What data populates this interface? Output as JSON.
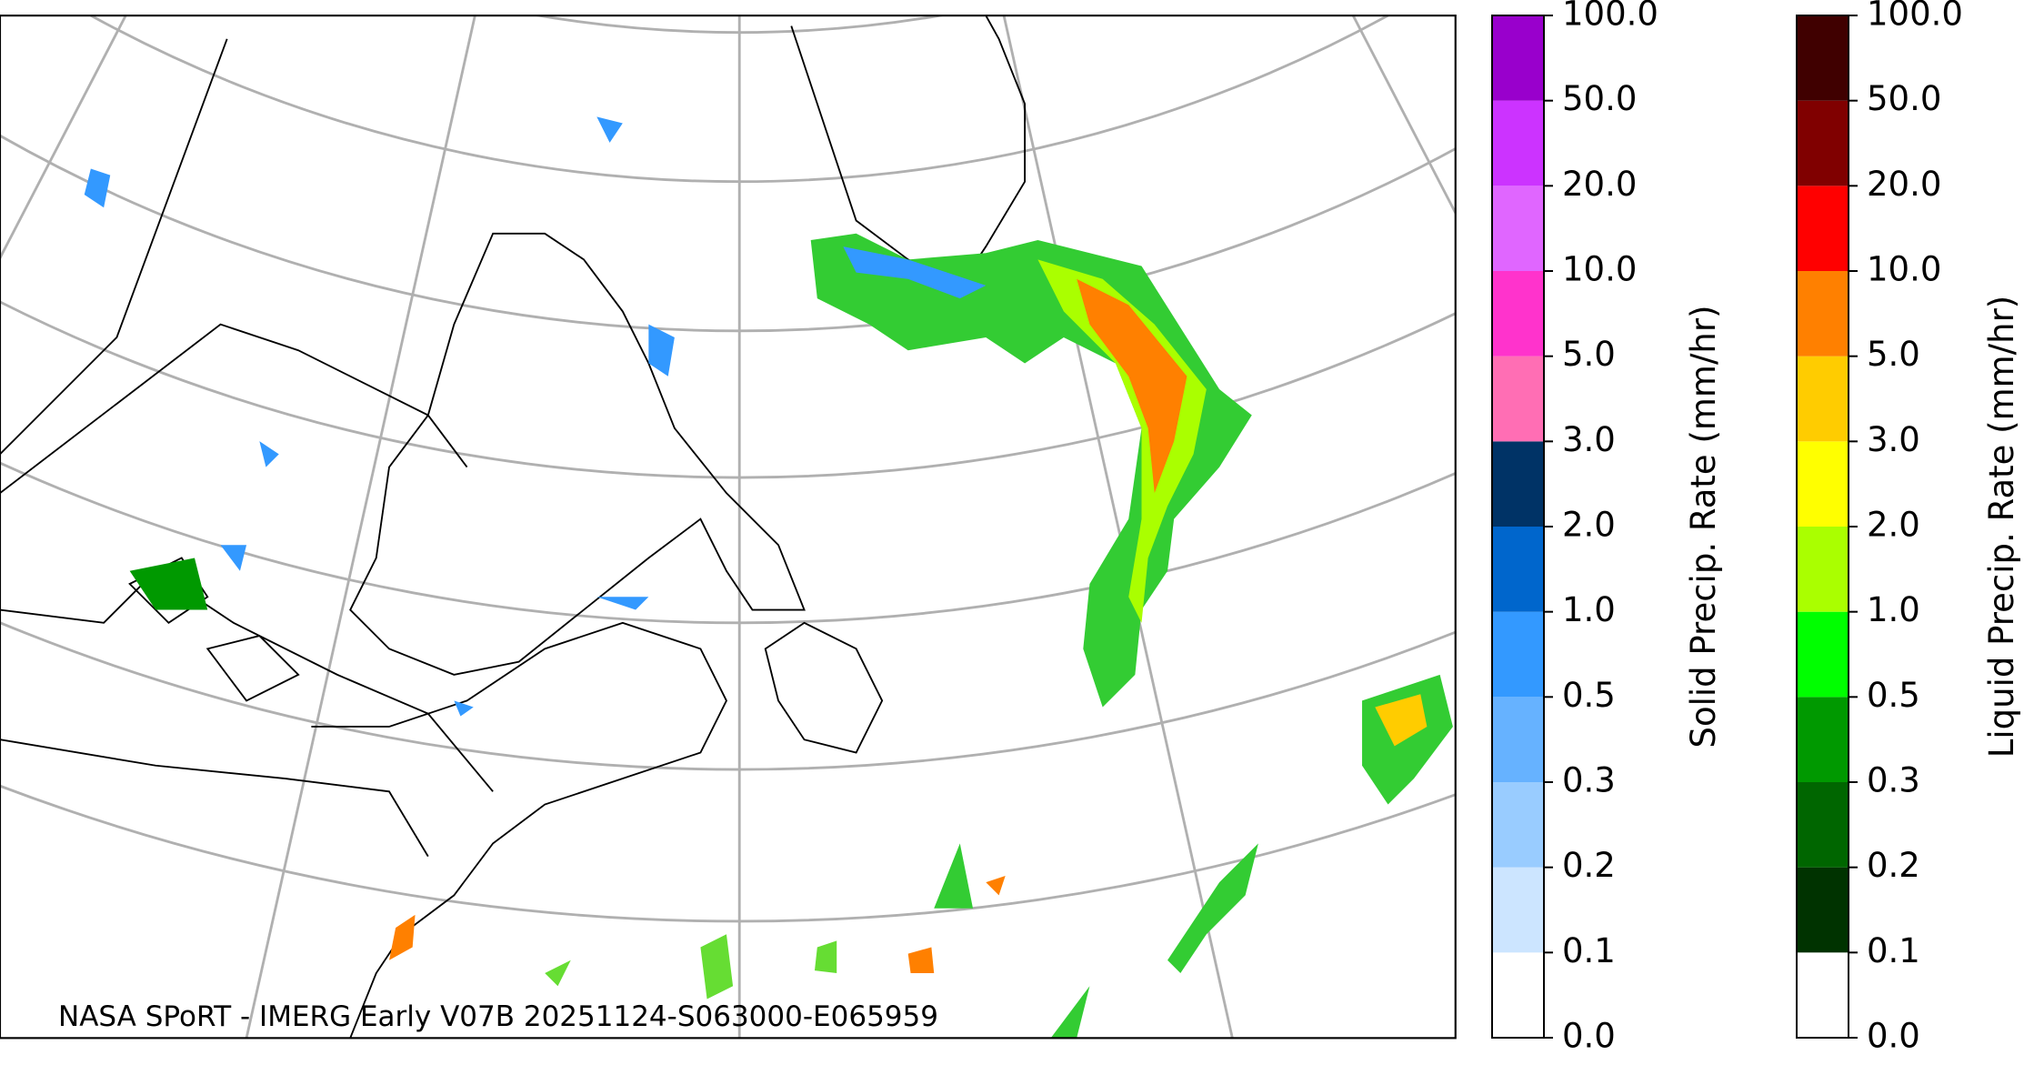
{
  "map": {
    "caption": "NASA SPoRT - IMERG Early V07B 20251124-S063000-E065959"
  },
  "colorbars": [
    {
      "label": "Solid Precip. Rate (mm/hr)",
      "ticks": [
        {
          "value": 0,
          "label": "0.0"
        },
        {
          "value": 0.1,
          "label": "0.1"
        },
        {
          "value": 0.2,
          "label": "0.2"
        },
        {
          "value": 0.3,
          "label": "0.3"
        },
        {
          "value": 0.5,
          "label": "0.5"
        },
        {
          "value": 1,
          "label": "1.0"
        },
        {
          "value": 2,
          "label": "2.0"
        },
        {
          "value": 3,
          "label": "3.0"
        },
        {
          "value": 5,
          "label": "5.0"
        },
        {
          "value": 10,
          "label": "10.0"
        },
        {
          "value": 20,
          "label": "20.0"
        },
        {
          "value": 50,
          "label": "50.0"
        },
        {
          "value": 100,
          "label": "100.0"
        }
      ],
      "colors": [
        "#ffffff",
        "#cce5ff",
        "#99ccff",
        "#66b2ff",
        "#3399ff",
        "#0066cc",
        "#003366",
        "#ff6eb4",
        "#ff33cc",
        "#e066ff",
        "#cc33ff",
        "#9900cc"
      ]
    },
    {
      "label": "Liquid Precip. Rate (mm/hr)",
      "ticks": [
        {
          "value": 0,
          "label": "0.0"
        },
        {
          "value": 0.1,
          "label": "0.1"
        },
        {
          "value": 0.2,
          "label": "0.2"
        },
        {
          "value": 0.3,
          "label": "0.3"
        },
        {
          "value": 0.5,
          "label": "0.5"
        },
        {
          "value": 1,
          "label": "1.0"
        },
        {
          "value": 2,
          "label": "2.0"
        },
        {
          "value": 3,
          "label": "3.0"
        },
        {
          "value": 5,
          "label": "5.0"
        },
        {
          "value": 10,
          "label": "10.0"
        },
        {
          "value": 20,
          "label": "20.0"
        },
        {
          "value": 50,
          "label": "50.0"
        },
        {
          "value": 100,
          "label": "100.0"
        }
      ],
      "colors": [
        "#ffffff",
        "#003300",
        "#006600",
        "#009900",
        "#00ff00",
        "#aaff00",
        "#ffff00",
        "#ffcc00",
        "#ff8000",
        "#ff0000",
        "#800000",
        "#400000"
      ]
    }
  ]
}
